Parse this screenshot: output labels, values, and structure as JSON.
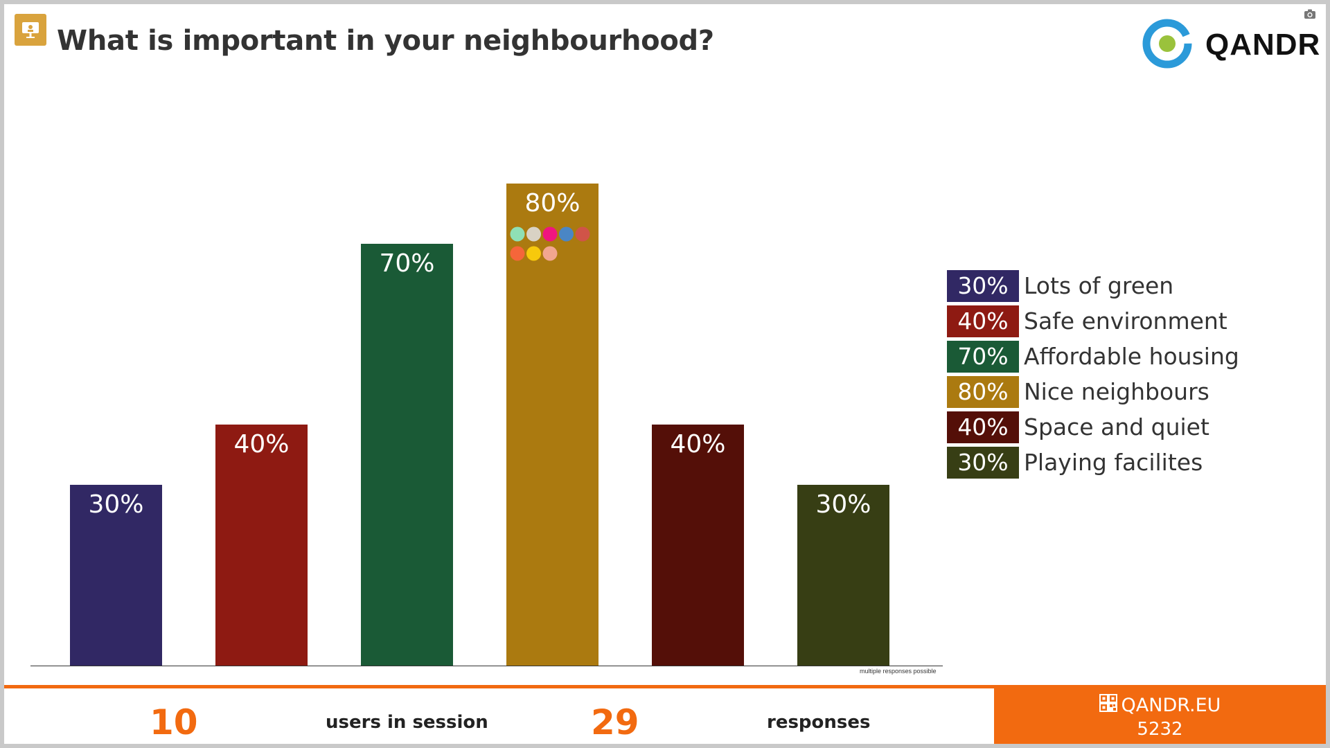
{
  "header": {
    "title": "What is important in your neighbourhood?",
    "presenter_icon": "presentation-icon",
    "camera_icon": "camera-icon"
  },
  "logo": {
    "text": "QANDR",
    "ring_color": "#2b9ad9",
    "dot_color": "#9ac23c"
  },
  "chart_data": {
    "type": "bar",
    "categories": [
      "Lots of green",
      "Safe environment",
      "Affordable housing",
      "Nice neighbours",
      "Space and quiet",
      "Playing facilites"
    ],
    "values": [
      30,
      40,
      70,
      80,
      40,
      30
    ],
    "value_labels": [
      "30%",
      "40%",
      "70%",
      "80%",
      "40%",
      "30%"
    ],
    "colors": [
      "#312864",
      "#8e1a12",
      "#1a5a36",
      "#ab7a10",
      "#540f08",
      "#373e14"
    ],
    "ylim": [
      0,
      100
    ],
    "grid": false,
    "legend_position": "right",
    "response_dots": [
      "#8fe0b5",
      "#d9d2c4",
      "#f0157f",
      "#4a86c5",
      "#d05448",
      "#f5663a",
      "#f7c90c",
      "#f2a690"
    ],
    "footnote": "multiple responses possible"
  },
  "footer": {
    "users_count": "10",
    "users_label": "users in session",
    "responses_count": "29",
    "responses_label": "responses",
    "brand_url": "QANDR.EU",
    "session_code": "5232",
    "qr_icon": "qr-code-icon",
    "accent_color": "#f26a10"
  }
}
